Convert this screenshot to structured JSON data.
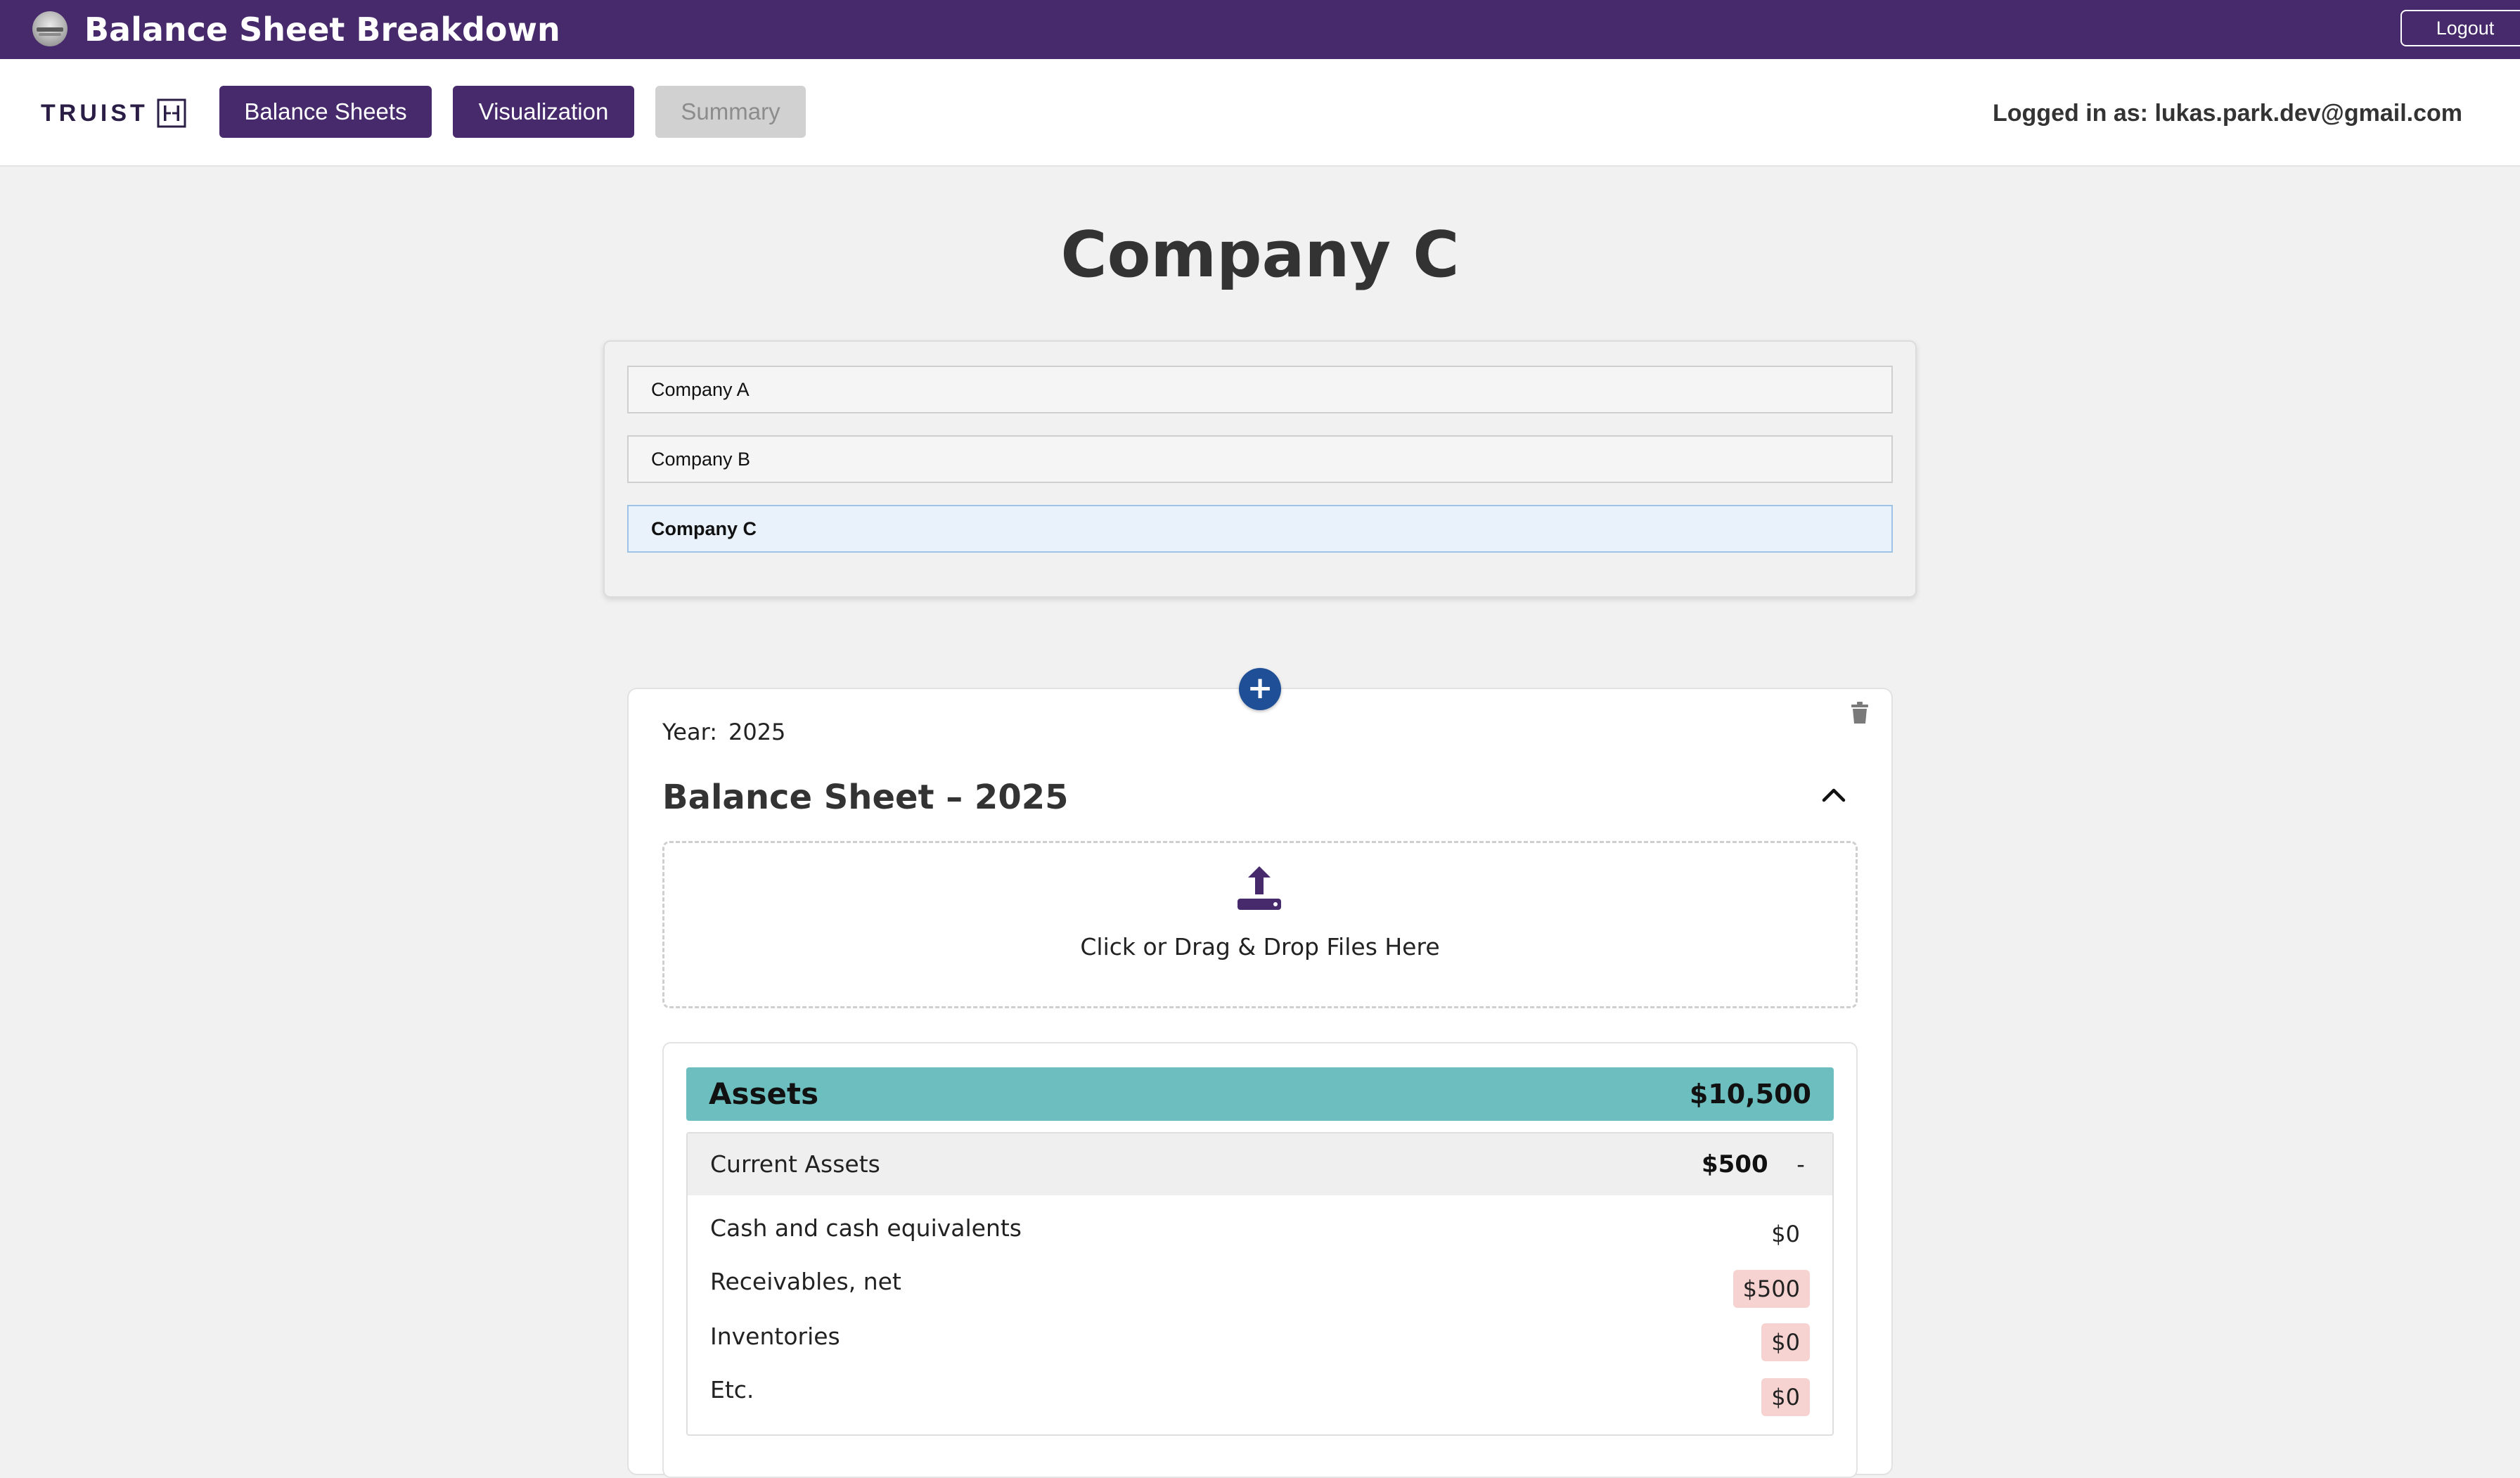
{
  "header": {
    "app_title": "Balance Sheet Breakdown",
    "logout_label": "Logout"
  },
  "nav": {
    "brand_text": "TRUIST",
    "buttons": [
      {
        "label": "Balance Sheets",
        "state": "active"
      },
      {
        "label": "Visualization",
        "state": "active"
      },
      {
        "label": "Summary",
        "state": "disabled"
      }
    ],
    "user_info": "Logged in as: lukas.park.dev@gmail.com"
  },
  "page": {
    "title": "Company C"
  },
  "companies": [
    {
      "name": "Company A",
      "selected": false
    },
    {
      "name": "Company B",
      "selected": false
    },
    {
      "name": "Company C",
      "selected": true
    }
  ],
  "balance_sheet": {
    "add_button_symbol": "+",
    "year_label": "Year:",
    "year_value": "2025",
    "title": "Balance Sheet – 2025",
    "dropzone_text": "Click or Drag & Drop Files Here",
    "assets": {
      "label": "Assets",
      "total": "$10,500",
      "current_assets": {
        "label": "Current Assets",
        "total": "$500",
        "toggle": "-",
        "items": [
          {
            "label": "Cash and cash equivalents",
            "value": "$0",
            "flagged": false
          },
          {
            "label": "Receivables, net",
            "value": "$500",
            "flagged": true
          },
          {
            "label": "Inventories",
            "value": "$0",
            "flagged": true
          },
          {
            "label": "Etc.",
            "value": "$0",
            "flagged": true
          }
        ]
      }
    }
  },
  "colors": {
    "primary": "#472a6b",
    "accent_blue": "#1f4f96",
    "assets_header": "#6dbfbf",
    "flag_background": "#f6d3d1",
    "disabled": "#d1d1d1"
  },
  "icons": [
    "app-logo-icon",
    "truist-logo-icon",
    "plus-icon",
    "trash-icon",
    "chevron-up-icon",
    "upload-icon"
  ]
}
